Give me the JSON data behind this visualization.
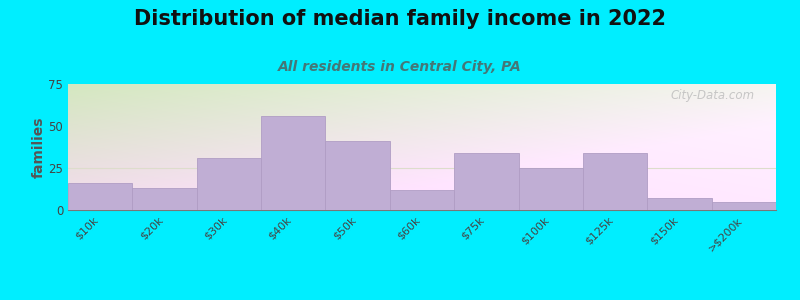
{
  "title": "Distribution of median family income in 2022",
  "subtitle": "All residents in Central City, PA",
  "categories": [
    "$10k",
    "$20k",
    "$30k",
    "$40k",
    "$50k",
    "$60k",
    "$75k",
    "$100k",
    "$125k",
    "$150k",
    ">$200k"
  ],
  "values": [
    16,
    13,
    31,
    56,
    41,
    12,
    34,
    25,
    34,
    7,
    5
  ],
  "bar_color": "#c0aed4",
  "bar_edge_color": "#b09dc4",
  "ylabel": "families",
  "ylim": [
    0,
    75
  ],
  "yticks": [
    0,
    25,
    50,
    75
  ],
  "background_outer": "#00eeff",
  "bg_topleft": "#d4e8c0",
  "bg_bottomright": "#f5f5f0",
  "title_fontsize": 15,
  "subtitle_fontsize": 10,
  "subtitle_color": "#447777",
  "watermark": "City-Data.com",
  "title_fontweight": "bold",
  "hline_color": "#ddddcc",
  "hline_y": [
    25
  ]
}
